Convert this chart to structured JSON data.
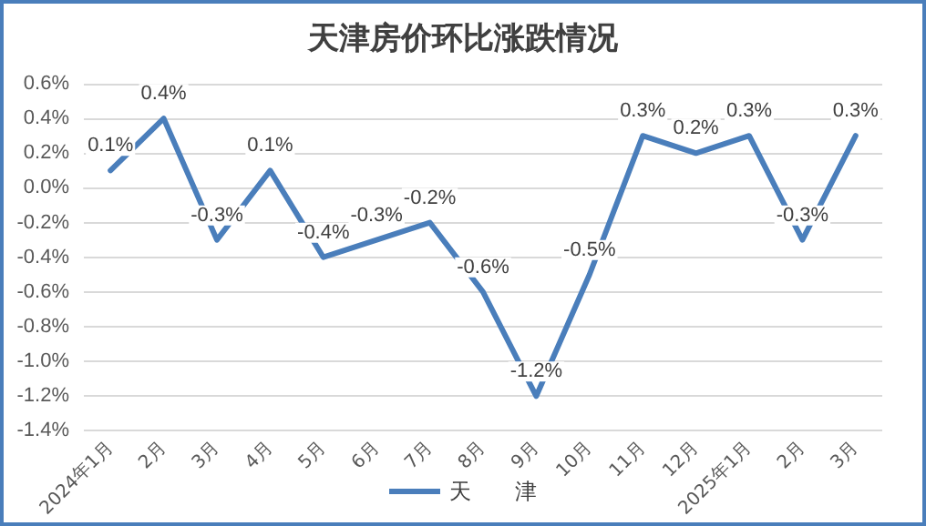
{
  "chart_data": {
    "type": "line",
    "title": "天津房价环比涨跌情况",
    "categories": [
      "2024年1月",
      "2月",
      "3月",
      "4月",
      "5月",
      "6月",
      "7月",
      "8月",
      "9月",
      "10月",
      "11月",
      "12月",
      "2025年1月",
      "2月",
      "3月"
    ],
    "series": [
      {
        "name": "天　　津",
        "color": "#4a7ebb",
        "values": [
          0.1,
          0.4,
          -0.3,
          0.1,
          -0.4,
          -0.3,
          -0.2,
          -0.6,
          -1.2,
          -0.5,
          0.3,
          0.2,
          0.3,
          -0.3,
          0.3
        ],
        "value_labels": [
          "0.1%",
          "0.4%",
          "-0.3%",
          "0.1%",
          "-0.4%",
          "-0.3%",
          "-0.2%",
          "-0.6%",
          "-1.2%",
          "-0.5%",
          "0.3%",
          "0.2%",
          "0.3%",
          "-0.3%",
          "0.3%"
        ]
      }
    ],
    "ylim": [
      -1.4,
      0.6
    ],
    "yticks": [
      {
        "value": -1.4,
        "label": "-1.4%"
      },
      {
        "value": -1.2,
        "label": "-1.2%"
      },
      {
        "value": -1.0,
        "label": "-1.0%"
      },
      {
        "value": -0.8,
        "label": "-0.8%"
      },
      {
        "value": -0.6,
        "label": "-0.6%"
      },
      {
        "value": -0.4,
        "label": "-0.4%"
      },
      {
        "value": -0.2,
        "label": "-0.2%"
      },
      {
        "value": 0,
        "label": "0.0%"
      },
      {
        "value": 0.2,
        "label": "0.2%"
      },
      {
        "value": 0.4,
        "label": "0.4%"
      },
      {
        "value": 0.6,
        "label": "0.6%"
      }
    ],
    "grid": "y",
    "legend": "bottom",
    "marker": "none",
    "line_style": "solid"
  }
}
